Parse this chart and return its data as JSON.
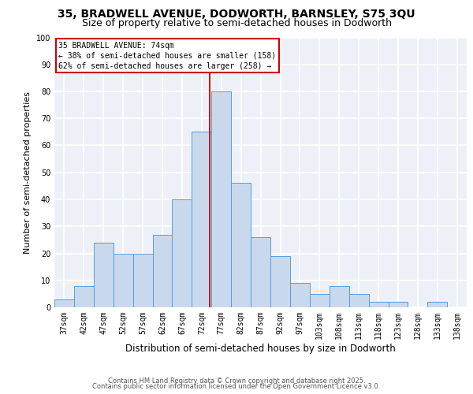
{
  "title1": "35, BRADWELL AVENUE, DODWORTH, BARNSLEY, S75 3QU",
  "title2": "Size of property relative to semi-detached houses in Dodworth",
  "xlabel": "Distribution of semi-detached houses by size in Dodworth",
  "ylabel": "Number of semi-detached properties",
  "footer1": "Contains HM Land Registry data © Crown copyright and database right 2025.",
  "footer2": "Contains public sector information licensed under the Open Government Licence v3.0.",
  "categories": [
    "37sqm",
    "42sqm",
    "47sqm",
    "52sqm",
    "57sqm",
    "62sqm",
    "67sqm",
    "72sqm",
    "77sqm",
    "82sqm",
    "87sqm",
    "92sqm",
    "97sqm",
    "103sqm",
    "108sqm",
    "113sqm",
    "118sqm",
    "123sqm",
    "128sqm",
    "133sqm",
    "138sqm"
  ],
  "values": [
    3,
    8,
    24,
    20,
    20,
    27,
    40,
    65,
    80,
    46,
    26,
    19,
    9,
    5,
    8,
    5,
    2,
    2,
    0,
    2,
    0
  ],
  "bar_color": "#c9d9ed",
  "bar_edge_color": "#5b9bd5",
  "bar_edge_width": 0.7,
  "vline_pos": 7.4,
  "vline_color": "#cc0000",
  "annotation_text": "35 BRADWELL AVENUE: 74sqm\n← 38% of semi-detached houses are smaller (158)\n62% of semi-detached houses are larger (258) →",
  "background_color": "#edf1f7",
  "grid_color": "#ffffff",
  "ylim": [
    0,
    100
  ],
  "yticks": [
    0,
    10,
    20,
    30,
    40,
    50,
    60,
    70,
    80,
    90,
    100
  ],
  "title1_fontsize": 10,
  "title2_fontsize": 9,
  "xlabel_fontsize": 8.5,
  "ylabel_fontsize": 8,
  "tick_fontsize": 7,
  "annotation_fontsize": 7,
  "footer_fontsize": 6
}
